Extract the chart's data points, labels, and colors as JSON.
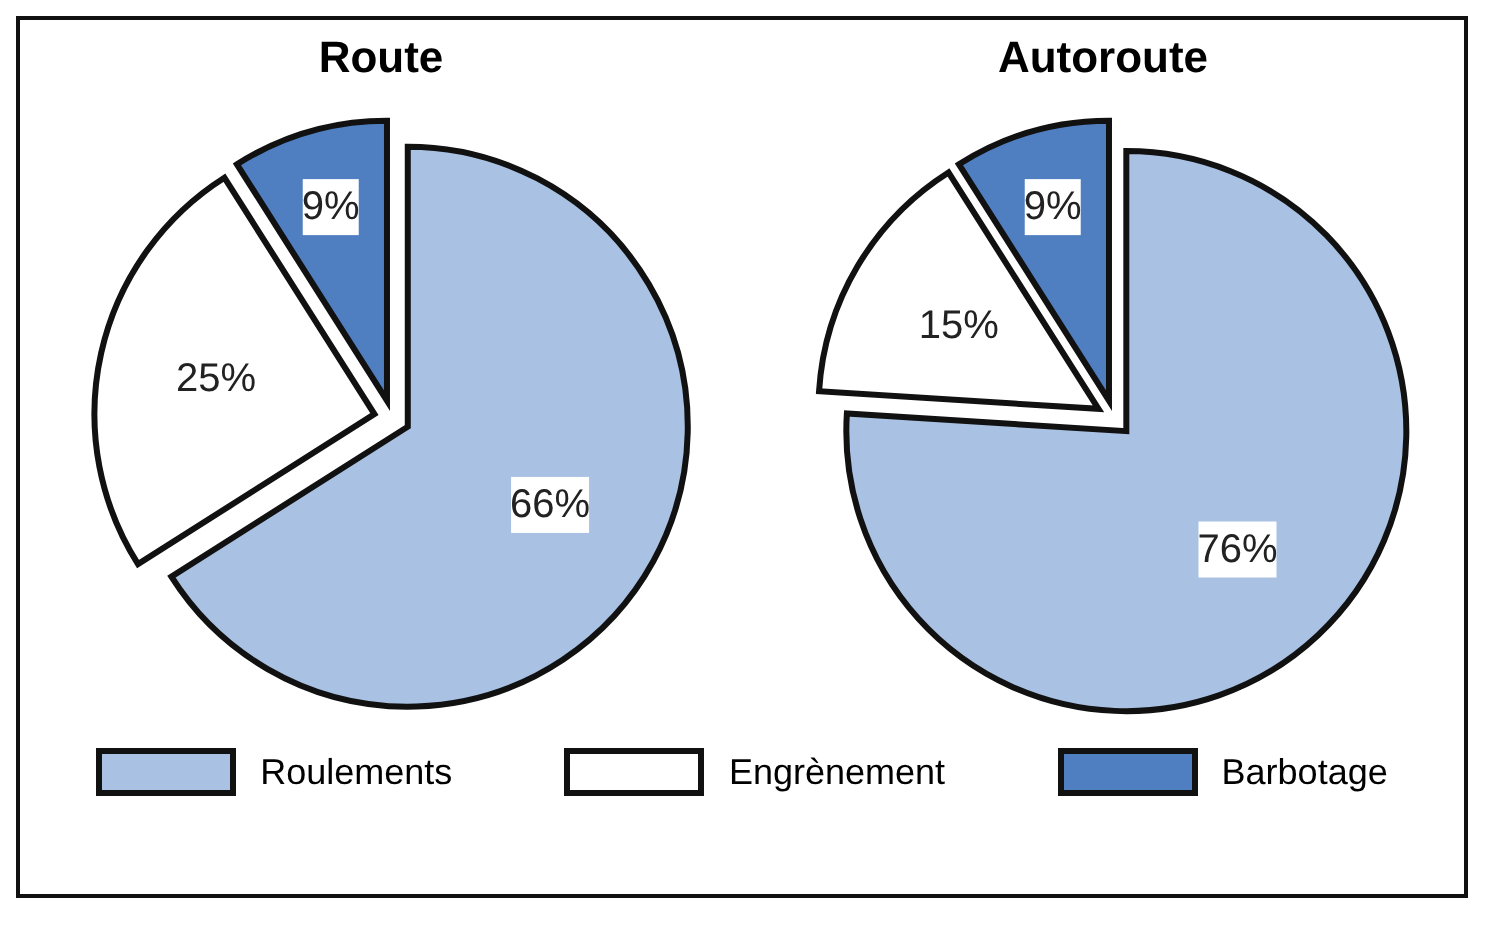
{
  "chart_data": [
    {
      "type": "pie",
      "title": "Route",
      "categories": [
        "Roulements",
        "Engrènement",
        "Barbotage"
      ],
      "values": [
        66,
        25,
        9
      ],
      "colors": [
        "#a9c1e3",
        "#ffffff",
        "#4f7fc0"
      ],
      "value_labels": [
        "66%",
        "25%",
        "9%"
      ],
      "legend": "bottom"
    },
    {
      "type": "pie",
      "title": "Autoroute",
      "categories": [
        null,
        null,
        null
      ],
      "values": [
        76,
        15,
        9
      ],
      "colors": [
        "#a9c1e3",
        "#ffffff",
        "#4f7fc0"
      ],
      "value_labels": [
        "76%",
        "15%",
        "9%"
      ]
    }
  ]
}
